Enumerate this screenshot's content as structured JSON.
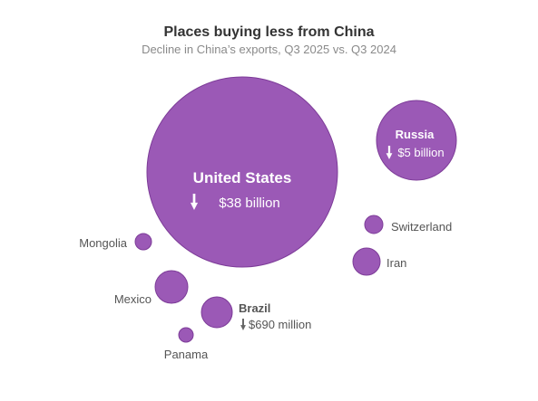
{
  "chart_data": {
    "type": "bubble",
    "title": "Places buying less from China",
    "subtitle": "Decline in China’s exports, Q3 2025 vs. Q3 2024",
    "color": "#9b59b6",
    "points": [
      {
        "label": "United States",
        "value_label": "$38 billion",
        "value": 38000
      },
      {
        "label": "Russia",
        "value_label": "$5 billion",
        "value": 5000
      },
      {
        "label": "Switzerland",
        "value_label": "",
        "value": 250
      },
      {
        "label": "Iran",
        "value_label": "",
        "value": 560
      },
      {
        "label": "Mongolia",
        "value_label": "",
        "value": 180
      },
      {
        "label": "Mexico",
        "value_label": "",
        "value": 800
      },
      {
        "label": "Brazil",
        "value_label": "$690 million",
        "value": 690
      },
      {
        "label": "Panama",
        "value_label": "",
        "value": 150
      }
    ]
  }
}
